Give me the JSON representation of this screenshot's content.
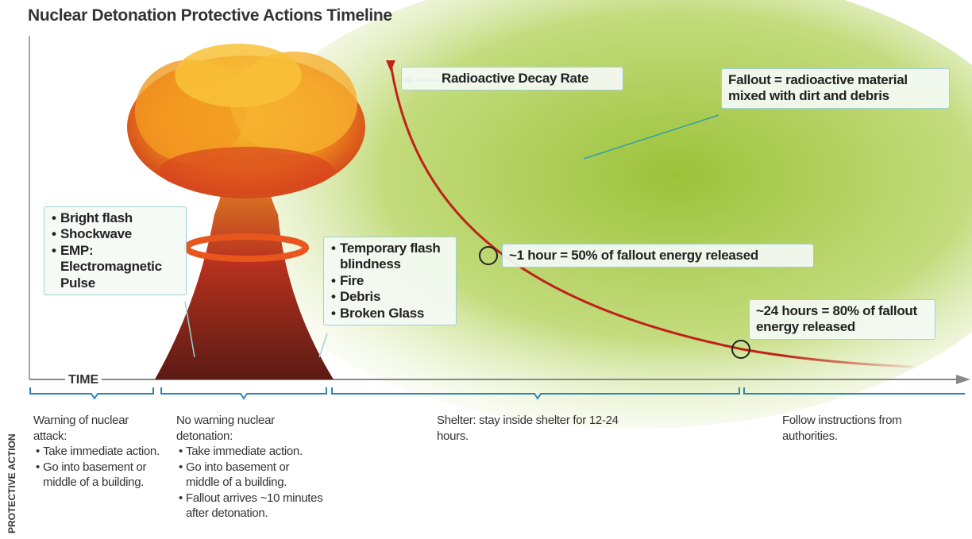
{
  "title": "Nuclear Detonation Protective Actions Timeline",
  "effects_initial": [
    "Bright flash",
    "Shockwave",
    "EMP: Electromagnetic Pulse"
  ],
  "effects_secondary": [
    "Temporary flash blindness",
    "Fire",
    "Debris",
    "Broken Glass"
  ],
  "decay_label": "Radioactive Decay Rate",
  "fallout_label": "Fallout = radioactive material mixed with dirt and debris",
  "marker_1_hour": "~1 hour = 50% of fallout energy released",
  "marker_24_hours": "~24 hours = 80% of fallout energy released",
  "axis_label": "TIME",
  "side_label": "PROTECTIVE ACTION",
  "actions": [
    {
      "heading": "Warning of nuclear attack:",
      "bullets": [
        "Take immediate action.",
        "Go into basement or middle of a building."
      ]
    },
    {
      "heading": "No warning nuclear detonation:",
      "bullets": [
        "Take immediate action.",
        "Go into basement or middle of a building.",
        "Fallout arrives ~10 minutes after detonation."
      ]
    },
    {
      "heading": "Shelter: stay inside shelter for 12-24 hours."
    },
    {
      "heading": "Follow instructions from authorities."
    }
  ]
}
